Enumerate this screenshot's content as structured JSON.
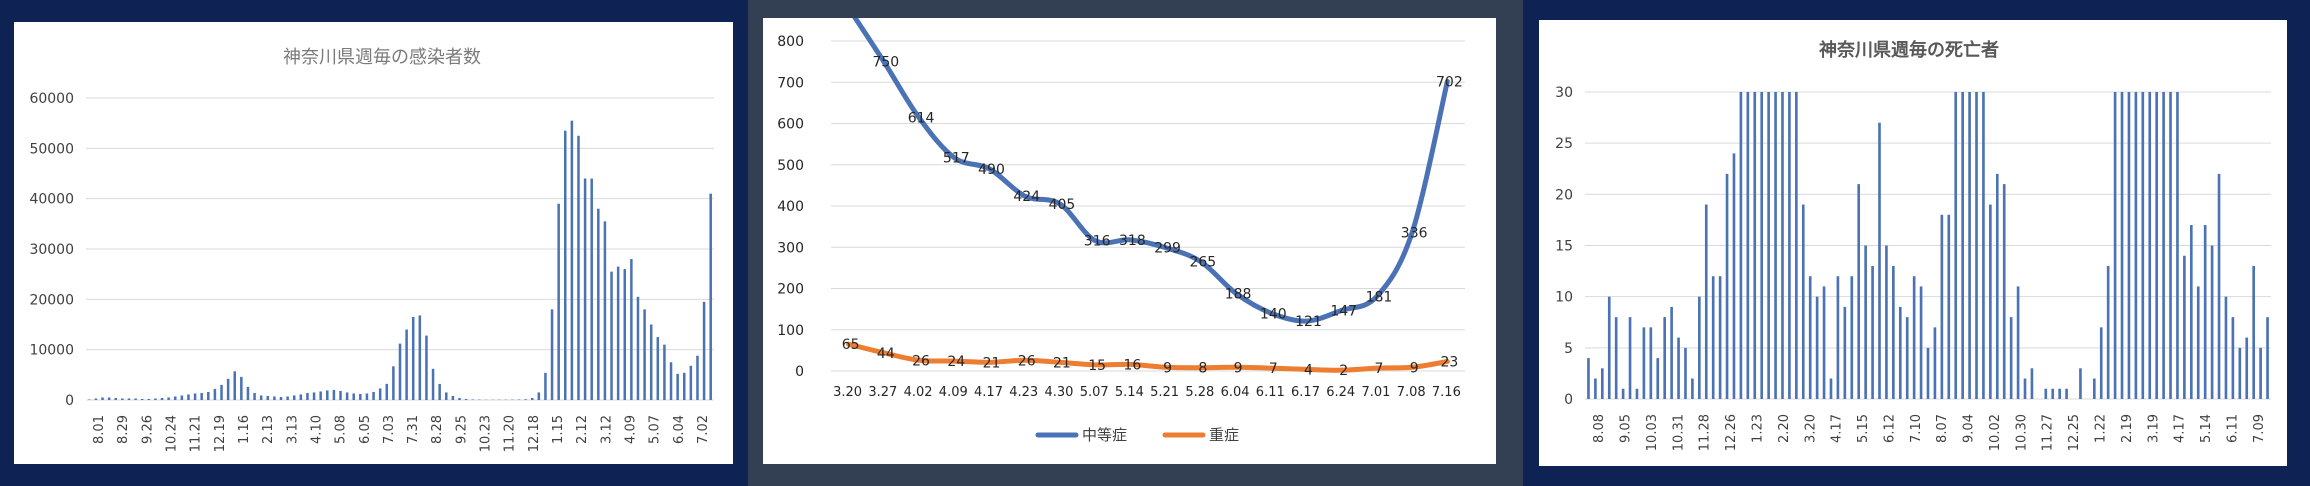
{
  "colors": {
    "left_frame": "#0e2254",
    "middle_frame": "#333f53",
    "right_frame": "#0e2254",
    "bar_blue": "#4a72b5",
    "line_orange": "#ed7d31",
    "grid": "#d9d9d9",
    "axis_text": "#404040",
    "title_text": "#7a7a7a"
  },
  "chart_data": [
    {
      "type": "bar",
      "title": "神奈川県週毎の感染者数",
      "xlabel": "",
      "ylabel": "",
      "ylim": [
        0,
        60000
      ],
      "yticks": [
        "0",
        "10000",
        "20000",
        "30000",
        "40000",
        "50000",
        "60000"
      ],
      "grid": true,
      "tick_labels": [
        "8.01",
        "8.29",
        "9.26",
        "10.24",
        "11.21",
        "12.19",
        "1.16",
        "2.13",
        "3.13",
        "4.10",
        "5.08",
        "6.05",
        "7.03",
        "7.31",
        "8.28",
        "9.25",
        "10.23",
        "11.20",
        "12.18",
        "1.15",
        "2.12",
        "3.12",
        "4.09",
        "5.07",
        "6.04",
        "7.02"
      ],
      "values": [
        100,
        300,
        500,
        500,
        400,
        300,
        300,
        300,
        200,
        200,
        300,
        400,
        500,
        700,
        900,
        1100,
        1300,
        1400,
        1600,
        2200,
        3000,
        4200,
        5700,
        4600,
        2600,
        1400,
        900,
        800,
        700,
        600,
        700,
        900,
        1100,
        1400,
        1500,
        1700,
        1900,
        2000,
        1800,
        1500,
        1300,
        1200,
        1300,
        1600,
        2300,
        3200,
        6700,
        11200,
        14000,
        16500,
        16800,
        12800,
        6200,
        3200,
        1500,
        800,
        400,
        200,
        100,
        80,
        60,
        50,
        60,
        70,
        80,
        100,
        150,
        400,
        1500,
        5400,
        18000,
        39000,
        53500,
        55500,
        52500,
        44000,
        44000,
        38000,
        35500,
        25500,
        26500,
        26000,
        28000,
        20500,
        18000,
        15000,
        12500,
        11000,
        7500,
        5200,
        5400,
        6800,
        8800,
        19500,
        41000
      ]
    },
    {
      "type": "line",
      "title": "",
      "xlabel": "",
      "ylabel": "",
      "ylim": [
        0,
        800
      ],
      "yticks": [
        "0",
        "100",
        "200",
        "300",
        "400",
        "500",
        "600",
        "700",
        "800"
      ],
      "grid": true,
      "legend_position": "bottom",
      "categories": [
        "3.20",
        "3.27",
        "4.02",
        "4.09",
        "4.17",
        "4.23",
        "4.30",
        "5.07",
        "5.14",
        "5.21",
        "5.28",
        "6.04",
        "6.11",
        "6.17",
        "6.24",
        "7.01",
        "7.08",
        "7.16"
      ],
      "series": [
        {
          "name": "中等症",
          "color": "#4a72b5",
          "values": [
            940,
            750,
            614,
            517,
            490,
            424,
            405,
            316,
            318,
            299,
            265,
            188,
            140,
            121,
            147,
            181,
            336,
            702
          ],
          "labels": [
            "",
            "750",
            "614",
            "517",
            "490",
            "424",
            "405",
            "316",
            "318",
            "299",
            "265",
            "188",
            "140",
            "121",
            "147",
            "181",
            "336",
            "702"
          ]
        },
        {
          "name": "重症",
          "color": "#ed7d31",
          "values": [
            65,
            44,
            26,
            24,
            21,
            26,
            21,
            15,
            16,
            9,
            8,
            9,
            7,
            4,
            2,
            7,
            9,
            23
          ],
          "labels": [
            "65",
            "44",
            "26",
            "24",
            "21",
            "26",
            "21",
            "15",
            "16",
            "9",
            "8",
            "9",
            "7",
            "4",
            "2",
            "7",
            "9",
            "23"
          ]
        }
      ]
    },
    {
      "type": "bar",
      "title": "神奈川県週毎の死亡者",
      "xlabel": "",
      "ylabel": "",
      "ylim": [
        0,
        30
      ],
      "yticks": [
        "0",
        "5",
        "10",
        "15",
        "20",
        "25",
        "30"
      ],
      "grid": true,
      "tick_labels": [
        "8.08",
        "9.05",
        "10.03",
        "10.31",
        "11.28",
        "12.26",
        "1.23",
        "2.20",
        "3.20",
        "4.17",
        "5.15",
        "6.12",
        "7.10",
        "8.07",
        "9.04",
        "10.02",
        "10.30",
        "11.27",
        "12.25",
        "1.22",
        "2.19",
        "3.19",
        "4.17",
        "5.14",
        "6.11",
        "7.09"
      ],
      "values": [
        4,
        2,
        3,
        10,
        8,
        1,
        8,
        1,
        7,
        7,
        4,
        8,
        9,
        6,
        5,
        2,
        10,
        19,
        12,
        12,
        22,
        24,
        30,
        30,
        30,
        30,
        30,
        30,
        30,
        30,
        30,
        19,
        12,
        10,
        11,
        2,
        12,
        9,
        12,
        21,
        15,
        13,
        27,
        15,
        13,
        9,
        8,
        12,
        11,
        5,
        7,
        18,
        18,
        30,
        30,
        30,
        30,
        30,
        19,
        22,
        21,
        8,
        11,
        2,
        3,
        0,
        1,
        1,
        1,
        1,
        0,
        3,
        0,
        2,
        7,
        13,
        30,
        30,
        30,
        30,
        30,
        30,
        30,
        30,
        30,
        30,
        14,
        17,
        11,
        17,
        15,
        22,
        10,
        8,
        5,
        6,
        13,
        5,
        8
      ]
    }
  ]
}
